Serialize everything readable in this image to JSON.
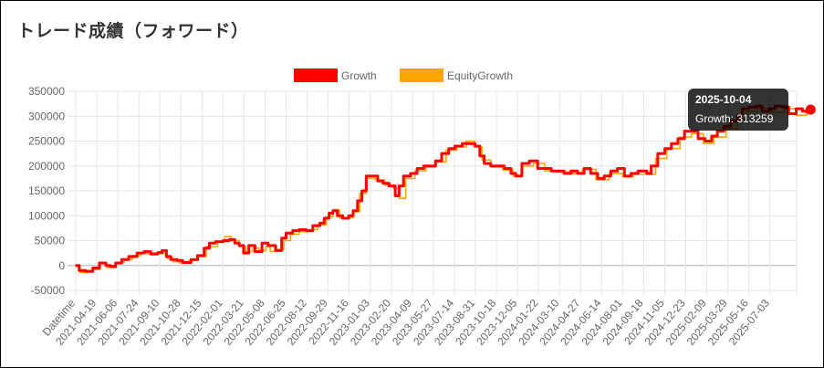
{
  "page": {
    "title": "トレード成績（フォワード）"
  },
  "chart_data": {
    "type": "line",
    "legend": [
      {
        "name": "Growth",
        "color": "#ff0000"
      },
      {
        "name": "EquityGrowth",
        "color": "#ffa500"
      }
    ],
    "x_ticks": [
      "Datetime",
      "2021-04-19",
      "2021-06-06",
      "2021-07-24",
      "2021-09-10",
      "2021-10-28",
      "2021-12-15",
      "2022-02-01",
      "2022-03-21",
      "2022-05-08",
      "2022-06-25",
      "2022-08-12",
      "2022-09-29",
      "2022-11-16",
      "2023-01-03",
      "2023-02-20",
      "2023-04-09",
      "2023-05-27",
      "2023-07-14",
      "2023-08-31",
      "2023-10-18",
      "2023-12-05",
      "2024-01-22",
      "2024-03-10",
      "2024-04-27",
      "2024-06-14",
      "2024-08-01",
      "2024-09-18",
      "2024-11-05",
      "2024-12-23",
      "2025-02-09",
      "2025-03-29",
      "2025-05-16",
      "2025-07-03"
    ],
    "ylim": [
      -50000,
      350000
    ],
    "y_ticks": [
      350000,
      300000,
      250000,
      200000,
      150000,
      100000,
      50000,
      0,
      -50000
    ],
    "grid": true,
    "legend_position": "top",
    "series": [
      {
        "name": "Growth",
        "color": "#ff0000",
        "points": [
          [
            "2021-03-01",
            0
          ],
          [
            "2021-03-10",
            -10000
          ],
          [
            "2021-03-25",
            -12000
          ],
          [
            "2021-04-10",
            -5000
          ],
          [
            "2021-04-25",
            5000
          ],
          [
            "2021-05-10",
            0
          ],
          [
            "2021-05-20",
            -2000
          ],
          [
            "2021-06-01",
            5000
          ],
          [
            "2021-06-15",
            12000
          ],
          [
            "2021-07-01",
            18000
          ],
          [
            "2021-07-20",
            25000
          ],
          [
            "2021-08-05",
            28000
          ],
          [
            "2021-08-20",
            23000
          ],
          [
            "2021-09-05",
            26000
          ],
          [
            "2021-09-15",
            30000
          ],
          [
            "2021-09-25",
            18000
          ],
          [
            "2021-10-05",
            12000
          ],
          [
            "2021-10-20",
            10000
          ],
          [
            "2021-11-01",
            6000
          ],
          [
            "2021-11-20",
            12000
          ],
          [
            "2021-12-05",
            20000
          ],
          [
            "2021-12-20",
            35000
          ],
          [
            "2022-01-01",
            45000
          ],
          [
            "2022-01-15",
            48000
          ],
          [
            "2022-02-01",
            50000
          ],
          [
            "2022-02-15",
            52000
          ],
          [
            "2022-02-28",
            45000
          ],
          [
            "2022-03-10",
            40000
          ],
          [
            "2022-03-20",
            25000
          ],
          [
            "2022-04-01",
            40000
          ],
          [
            "2022-04-15",
            28000
          ],
          [
            "2022-05-01",
            45000
          ],
          [
            "2022-05-15",
            40000
          ],
          [
            "2022-06-01",
            30000
          ],
          [
            "2022-06-15",
            55000
          ],
          [
            "2022-06-25",
            65000
          ],
          [
            "2022-07-10",
            70000
          ],
          [
            "2022-07-25",
            72000
          ],
          [
            "2022-08-10",
            70000
          ],
          [
            "2022-08-25",
            80000
          ],
          [
            "2022-09-10",
            85000
          ],
          [
            "2022-09-20",
            95000
          ],
          [
            "2022-10-01",
            105000
          ],
          [
            "2022-10-10",
            110000
          ],
          [
            "2022-10-20",
            100000
          ],
          [
            "2022-11-01",
            95000
          ],
          [
            "2022-11-15",
            100000
          ],
          [
            "2022-11-25",
            110000
          ],
          [
            "2022-12-05",
            130000
          ],
          [
            "2022-12-15",
            150000
          ],
          [
            "2022-12-25",
            180000
          ],
          [
            "2023-01-05",
            180000
          ],
          [
            "2023-01-20",
            170000
          ],
          [
            "2023-02-01",
            165000
          ],
          [
            "2023-02-15",
            160000
          ],
          [
            "2023-03-01",
            140000
          ],
          [
            "2023-03-10",
            160000
          ],
          [
            "2023-03-20",
            180000
          ],
          [
            "2023-04-05",
            185000
          ],
          [
            "2023-04-20",
            195000
          ],
          [
            "2023-05-05",
            200000
          ],
          [
            "2023-05-20",
            200000
          ],
          [
            "2023-06-01",
            210000
          ],
          [
            "2023-06-15",
            225000
          ],
          [
            "2023-07-01",
            235000
          ],
          [
            "2023-07-15",
            240000
          ],
          [
            "2023-08-01",
            245000
          ],
          [
            "2023-08-15",
            245000
          ],
          [
            "2023-08-30",
            240000
          ],
          [
            "2023-09-10",
            220000
          ],
          [
            "2023-09-20",
            205000
          ],
          [
            "2023-10-05",
            200000
          ],
          [
            "2023-10-20",
            200000
          ],
          [
            "2023-11-05",
            195000
          ],
          [
            "2023-11-20",
            185000
          ],
          [
            "2023-12-01",
            180000
          ],
          [
            "2023-12-15",
            205000
          ],
          [
            "2024-01-01",
            210000
          ],
          [
            "2024-01-20",
            195000
          ],
          [
            "2024-02-05",
            195000
          ],
          [
            "2024-02-20",
            190000
          ],
          [
            "2024-03-05",
            190000
          ],
          [
            "2024-03-20",
            185000
          ],
          [
            "2024-04-05",
            190000
          ],
          [
            "2024-04-20",
            185000
          ],
          [
            "2024-05-05",
            195000
          ],
          [
            "2024-05-20",
            185000
          ],
          [
            "2024-06-05",
            175000
          ],
          [
            "2024-06-20",
            180000
          ],
          [
            "2024-07-05",
            190000
          ],
          [
            "2024-07-20",
            195000
          ],
          [
            "2024-08-05",
            180000
          ],
          [
            "2024-08-20",
            185000
          ],
          [
            "2024-09-05",
            190000
          ],
          [
            "2024-09-25",
            185000
          ],
          [
            "2024-10-05",
            200000
          ],
          [
            "2024-10-20",
            225000
          ],
          [
            "2024-11-05",
            235000
          ],
          [
            "2024-11-20",
            245000
          ],
          [
            "2024-12-05",
            255000
          ],
          [
            "2024-12-20",
            270000
          ],
          [
            "2025-01-05",
            270000
          ],
          [
            "2025-01-20",
            255000
          ],
          [
            "2025-02-05",
            250000
          ],
          [
            "2025-02-20",
            260000
          ],
          [
            "2025-03-05",
            270000
          ],
          [
            "2025-03-20",
            280000
          ],
          [
            "2025-04-05",
            290000
          ],
          [
            "2025-04-20",
            300000
          ],
          [
            "2025-05-01",
            315000
          ],
          [
            "2025-05-15",
            318000
          ],
          [
            "2025-06-01",
            320000
          ],
          [
            "2025-06-15",
            310000
          ],
          [
            "2025-07-01",
            315000
          ],
          [
            "2025-07-15",
            320000
          ],
          [
            "2025-08-01",
            318000
          ],
          [
            "2025-08-15",
            305000
          ],
          [
            "2025-09-01",
            315000
          ],
          [
            "2025-09-15",
            310000
          ],
          [
            "2025-09-25",
            308000
          ],
          [
            "2025-10-04",
            313259
          ]
        ]
      },
      {
        "name": "EquityGrowth",
        "color": "#ffa500",
        "points": [
          [
            "2021-03-01",
            -2000
          ],
          [
            "2021-03-12",
            -14000
          ],
          [
            "2021-03-28",
            -10000
          ],
          [
            "2021-04-12",
            -8000
          ],
          [
            "2021-04-27",
            4000
          ],
          [
            "2021-05-12",
            -4000
          ],
          [
            "2021-06-01",
            6000
          ],
          [
            "2021-06-20",
            13000
          ],
          [
            "2021-07-10",
            20000
          ],
          [
            "2021-07-28",
            24000
          ],
          [
            "2021-08-15",
            25000
          ],
          [
            "2021-09-05",
            24000
          ],
          [
            "2021-09-25",
            15000
          ],
          [
            "2021-10-10",
            8000
          ],
          [
            "2021-10-25",
            5000
          ],
          [
            "2021-11-15",
            10000
          ],
          [
            "2021-12-05",
            18000
          ],
          [
            "2021-12-25",
            38000
          ],
          [
            "2022-01-20",
            47000
          ],
          [
            "2022-02-05",
            58000
          ],
          [
            "2022-02-20",
            50000
          ],
          [
            "2022-03-10",
            38000
          ],
          [
            "2022-03-25",
            28000
          ],
          [
            "2022-04-10",
            35000
          ],
          [
            "2022-04-25",
            30000
          ],
          [
            "2022-05-10",
            38000
          ],
          [
            "2022-05-20",
            28000
          ],
          [
            "2022-06-05",
            32000
          ],
          [
            "2022-06-20",
            50000
          ],
          [
            "2022-07-05",
            63000
          ],
          [
            "2022-07-25",
            68000
          ],
          [
            "2022-08-15",
            72000
          ],
          [
            "2022-09-05",
            82000
          ],
          [
            "2022-09-25",
            98000
          ],
          [
            "2022-10-10",
            112000
          ],
          [
            "2022-10-25",
            95000
          ],
          [
            "2022-11-10",
            96000
          ],
          [
            "2022-11-25",
            108000
          ],
          [
            "2022-12-10",
            145000
          ],
          [
            "2022-12-25",
            175000
          ],
          [
            "2023-01-15",
            172000
          ],
          [
            "2023-02-05",
            162000
          ],
          [
            "2023-02-25",
            155000
          ],
          [
            "2023-03-10",
            135000
          ],
          [
            "2023-03-25",
            175000
          ],
          [
            "2023-04-15",
            190000
          ],
          [
            "2023-05-10",
            198000
          ],
          [
            "2023-06-01",
            208000
          ],
          [
            "2023-06-25",
            232000
          ],
          [
            "2023-07-20",
            238000
          ],
          [
            "2023-08-10",
            250000
          ],
          [
            "2023-08-30",
            238000
          ],
          [
            "2023-09-15",
            212000
          ],
          [
            "2023-10-05",
            198000
          ],
          [
            "2023-11-01",
            192000
          ],
          [
            "2023-11-25",
            180000
          ],
          [
            "2023-12-15",
            200000
          ],
          [
            "2024-01-10",
            205000
          ],
          [
            "2024-02-05",
            190000
          ],
          [
            "2024-03-05",
            188000
          ],
          [
            "2024-04-01",
            185000
          ],
          [
            "2024-05-01",
            193000
          ],
          [
            "2024-06-01",
            172000
          ],
          [
            "2024-07-01",
            185000
          ],
          [
            "2024-08-01",
            178000
          ],
          [
            "2024-08-25",
            183000
          ],
          [
            "2024-09-20",
            183000
          ],
          [
            "2024-10-15",
            215000
          ],
          [
            "2024-11-10",
            235000
          ],
          [
            "2024-12-10",
            258000
          ],
          [
            "2025-01-05",
            265000
          ],
          [
            "2025-02-01",
            245000
          ],
          [
            "2025-02-25",
            258000
          ],
          [
            "2025-03-25",
            275000
          ],
          [
            "2025-04-20",
            295000
          ],
          [
            "2025-05-10",
            310000
          ],
          [
            "2025-06-05",
            316000
          ],
          [
            "2025-07-05",
            308000
          ],
          [
            "2025-08-05",
            315000
          ],
          [
            "2025-09-01",
            302000
          ],
          [
            "2025-09-25",
            306000
          ],
          [
            "2025-10-04",
            311000
          ]
        ]
      }
    ],
    "tooltip": {
      "date": "2025-10-04",
      "text": "Growth: 313259"
    }
  }
}
